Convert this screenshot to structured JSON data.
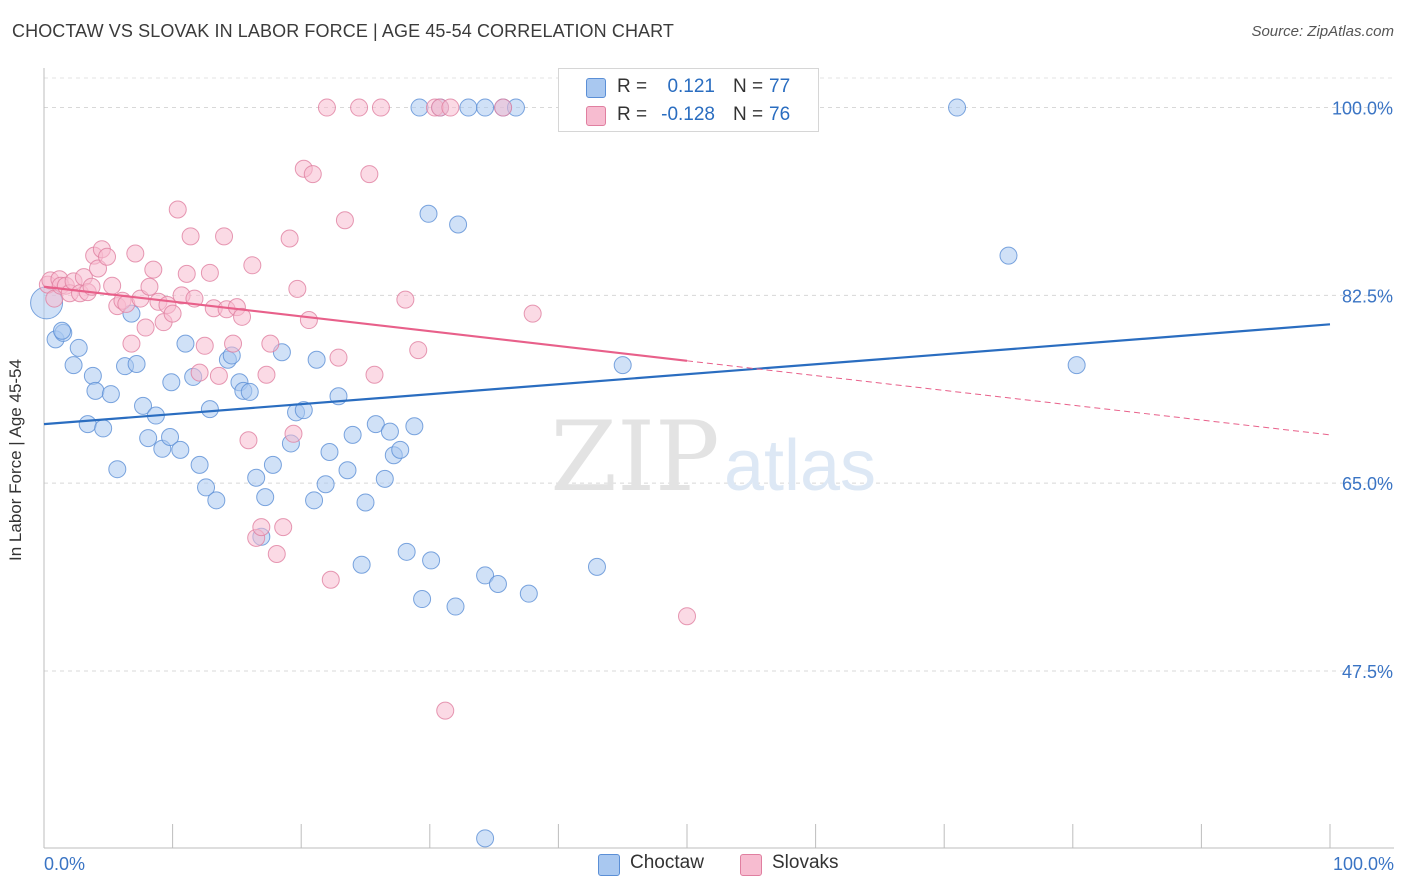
{
  "title": "CHOCTAW VS SLOVAK IN LABOR FORCE | AGE 45-54 CORRELATION CHART",
  "source": "Source: ZipAtlas.com",
  "watermark": {
    "zip": "ZIP",
    "atlas": "atlas"
  },
  "legend_top": {
    "rows": [
      {
        "r_label": "R =",
        "r_value": "0.121",
        "n_label": "N =",
        "n_value": "77",
        "color": "#a9c8f0",
        "stroke": "#5b8fd6"
      },
      {
        "r_label": "R =",
        "r_value": "-0.128",
        "n_label": "N =",
        "n_value": "76",
        "color": "#f7bcd0",
        "stroke": "#e07fa0"
      }
    ]
  },
  "legend_bottom": [
    {
      "label": "Choctaw",
      "color": "#a9c8f0",
      "stroke": "#5b8fd6"
    },
    {
      "label": "Slovaks",
      "color": "#f7bcd0",
      "stroke": "#e07fa0"
    }
  ],
  "chart_data": {
    "type": "scatter",
    "title": "CHOCTAW VS SLOVAK IN LABOR FORCE | AGE 45-54 CORRELATION CHART",
    "xlabel": "",
    "ylabel": "In Labor Force | Age 45-54",
    "xlim": [
      0,
      100
    ],
    "ylim": [
      31,
      103.5
    ],
    "x_tick_labels": [
      {
        "value": 0,
        "label": "0.0%"
      },
      {
        "value": 100,
        "label": "100.0%"
      }
    ],
    "y_tick_labels": [
      {
        "value": 100,
        "label": "100.0%"
      },
      {
        "value": 82.5,
        "label": "82.5%"
      },
      {
        "value": 65,
        "label": "65.0%"
      },
      {
        "value": 47.5,
        "label": "47.5%"
      }
    ],
    "grid": true,
    "legend_position": "top-center",
    "series": [
      {
        "name": "Choctaw",
        "color": "#5b8fd6",
        "fill": "#a9c8f0",
        "trend": {
          "x": [
            0,
            100
          ],
          "y": [
            70.5,
            79.8
          ],
          "dashed_from": null
        },
        "points": [
          [
            0.2,
            81.8
          ],
          [
            0.9,
            78.4
          ],
          [
            1.5,
            79.0
          ],
          [
            1.4,
            79.2
          ],
          [
            2.3,
            76.0
          ],
          [
            2.7,
            77.6
          ],
          [
            3.4,
            70.5
          ],
          [
            3.8,
            75.0
          ],
          [
            4.0,
            73.6
          ],
          [
            4.6,
            70.1
          ],
          [
            5.2,
            73.3
          ],
          [
            5.7,
            66.3
          ],
          [
            6.3,
            75.9
          ],
          [
            6.8,
            80.8
          ],
          [
            7.2,
            76.1
          ],
          [
            7.7,
            72.2
          ],
          [
            8.1,
            69.2
          ],
          [
            8.7,
            71.3
          ],
          [
            9.2,
            68.2
          ],
          [
            9.8,
            69.3
          ],
          [
            9.9,
            74.4
          ],
          [
            10.6,
            68.1
          ],
          [
            11.0,
            78.0
          ],
          [
            11.6,
            74.9
          ],
          [
            12.1,
            66.7
          ],
          [
            12.6,
            64.6
          ],
          [
            12.9,
            71.9
          ],
          [
            13.4,
            63.4
          ],
          [
            14.3,
            76.5
          ],
          [
            14.6,
            76.9
          ],
          [
            15.2,
            74.4
          ],
          [
            15.5,
            73.6
          ],
          [
            16.0,
            73.5
          ],
          [
            16.5,
            65.5
          ],
          [
            16.9,
            60.0
          ],
          [
            17.2,
            63.7
          ],
          [
            17.8,
            66.7
          ],
          [
            18.5,
            77.2
          ],
          [
            19.2,
            68.7
          ],
          [
            19.6,
            71.6
          ],
          [
            20.2,
            71.8
          ],
          [
            21.0,
            63.4
          ],
          [
            21.2,
            76.5
          ],
          [
            21.9,
            64.9
          ],
          [
            22.2,
            67.9
          ],
          [
            22.9,
            73.1
          ],
          [
            23.6,
            66.2
          ],
          [
            24.0,
            69.5
          ],
          [
            24.7,
            57.4
          ],
          [
            25.0,
            63.2
          ],
          [
            25.8,
            70.5
          ],
          [
            26.5,
            65.4
          ],
          [
            26.9,
            69.8
          ],
          [
            27.2,
            67.6
          ],
          [
            27.7,
            68.1
          ],
          [
            28.2,
            58.6
          ],
          [
            28.8,
            70.3
          ],
          [
            29.2,
            100.0
          ],
          [
            29.4,
            54.2
          ],
          [
            29.9,
            90.1
          ],
          [
            30.1,
            57.8
          ],
          [
            30.8,
            100.0
          ],
          [
            32.0,
            53.5
          ],
          [
            32.2,
            89.1
          ],
          [
            33.0,
            100.0
          ],
          [
            34.3,
            100.0
          ],
          [
            34.3,
            56.4
          ],
          [
            35.3,
            55.6
          ],
          [
            35.7,
            100.0
          ],
          [
            36.7,
            100.0
          ],
          [
            37.7,
            54.7
          ],
          [
            43.0,
            57.2
          ],
          [
            45.0,
            76.0
          ],
          [
            34.3,
            31.9
          ],
          [
            71.0,
            100.0
          ],
          [
            75.0,
            86.2
          ],
          [
            80.3,
            76.0
          ]
        ]
      },
      {
        "name": "Slovaks",
        "color": "#e07fa0",
        "fill": "#f7bcd0",
        "trend": {
          "x": [
            0,
            100
          ],
          "y": [
            83.3,
            69.5
          ],
          "dashed_from": 50
        },
        "points": [
          [
            0.3,
            83.5
          ],
          [
            0.5,
            83.9
          ],
          [
            0.8,
            82.2
          ],
          [
            1.2,
            84.0
          ],
          [
            1.3,
            83.4
          ],
          [
            1.7,
            83.4
          ],
          [
            2.0,
            82.7
          ],
          [
            2.3,
            83.8
          ],
          [
            2.8,
            82.7
          ],
          [
            3.1,
            84.2
          ],
          [
            3.4,
            82.8
          ],
          [
            3.7,
            83.3
          ],
          [
            3.9,
            86.2
          ],
          [
            4.2,
            85.0
          ],
          [
            4.5,
            86.8
          ],
          [
            4.9,
            86.1
          ],
          [
            5.3,
            83.4
          ],
          [
            5.7,
            81.5
          ],
          [
            6.1,
            82.0
          ],
          [
            6.4,
            81.7
          ],
          [
            6.8,
            78.0
          ],
          [
            7.1,
            86.4
          ],
          [
            7.5,
            82.2
          ],
          [
            7.9,
            79.5
          ],
          [
            8.2,
            83.3
          ],
          [
            8.5,
            84.9
          ],
          [
            8.9,
            81.9
          ],
          [
            9.3,
            80.0
          ],
          [
            9.6,
            81.6
          ],
          [
            10.0,
            80.8
          ],
          [
            10.4,
            90.5
          ],
          [
            10.7,
            82.5
          ],
          [
            11.1,
            84.5
          ],
          [
            11.4,
            88.0
          ],
          [
            11.7,
            82.2
          ],
          [
            12.1,
            75.3
          ],
          [
            12.5,
            77.8
          ],
          [
            12.9,
            84.6
          ],
          [
            13.2,
            81.3
          ],
          [
            13.6,
            75.0
          ],
          [
            14.0,
            88.0
          ],
          [
            14.2,
            81.2
          ],
          [
            14.7,
            78.0
          ],
          [
            15.0,
            81.4
          ],
          [
            15.4,
            80.5
          ],
          [
            15.9,
            69.0
          ],
          [
            16.2,
            85.3
          ],
          [
            16.5,
            59.9
          ],
          [
            16.9,
            60.9
          ],
          [
            17.3,
            75.1
          ],
          [
            17.6,
            78.0
          ],
          [
            18.1,
            58.4
          ],
          [
            18.6,
            60.9
          ],
          [
            19.1,
            87.8
          ],
          [
            19.4,
            69.6
          ],
          [
            19.7,
            83.1
          ],
          [
            20.2,
            94.3
          ],
          [
            20.6,
            80.2
          ],
          [
            20.9,
            93.8
          ],
          [
            22.0,
            100.0
          ],
          [
            22.3,
            56.0
          ],
          [
            22.9,
            76.7
          ],
          [
            23.4,
            89.5
          ],
          [
            24.5,
            100.0
          ],
          [
            25.3,
            93.8
          ],
          [
            25.7,
            75.1
          ],
          [
            26.2,
            100.0
          ],
          [
            28.1,
            82.1
          ],
          [
            29.1,
            77.4
          ],
          [
            30.4,
            100.0
          ],
          [
            30.8,
            100.0
          ],
          [
            31.6,
            100.0
          ],
          [
            31.2,
            43.8
          ],
          [
            35.7,
            100.0
          ],
          [
            38.0,
            80.8
          ],
          [
            50.0,
            52.6
          ]
        ]
      }
    ]
  }
}
